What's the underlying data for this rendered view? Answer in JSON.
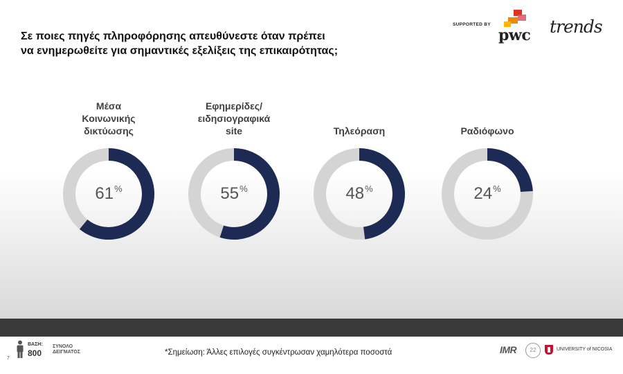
{
  "title_lines": [
    "Σε ποιες πηγές πληροφόρησης απευθύνεστε όταν πρέπει",
    "να ενημερωθείτε για σημαντικές εξελίξεις της επικαιρότητας;"
  ],
  "logos": {
    "supported_by": "SUPPORTED BY",
    "pwc": "pwc",
    "trends": "trends"
  },
  "chart_data": {
    "type": "pie",
    "subtype": "donut",
    "value_unit": "%",
    "max": 100,
    "categories": [
      [
        "Μέσα",
        "Κοινωνικής",
        "δικτύωσης"
      ],
      [
        "Εφημερίδες/",
        "ειδησιογραφικά",
        "site"
      ],
      [
        "Τηλεόραση"
      ],
      [
        "Ραδιόφωνο"
      ]
    ],
    "values": [
      61,
      55,
      48,
      24
    ],
    "colors": {
      "value": "#1c2a54",
      "remainder": "#d4d4d4"
    }
  },
  "footer": {
    "base_label": "ΒΑΣΗ:",
    "base_value": "800",
    "sample_label_lines": [
      "ΣΥΝΟΛΟ",
      "ΔΕΙΓΜΑΤΟΣ"
    ],
    "page_number": "7",
    "note": "*Σημείωση: Άλλες επιλογές συγκέντρωσαν χαμηλότερα ποσοστά",
    "imr": "IMR",
    "badge": "22",
    "university": "UNIVERSITY of NICOSIA"
  }
}
